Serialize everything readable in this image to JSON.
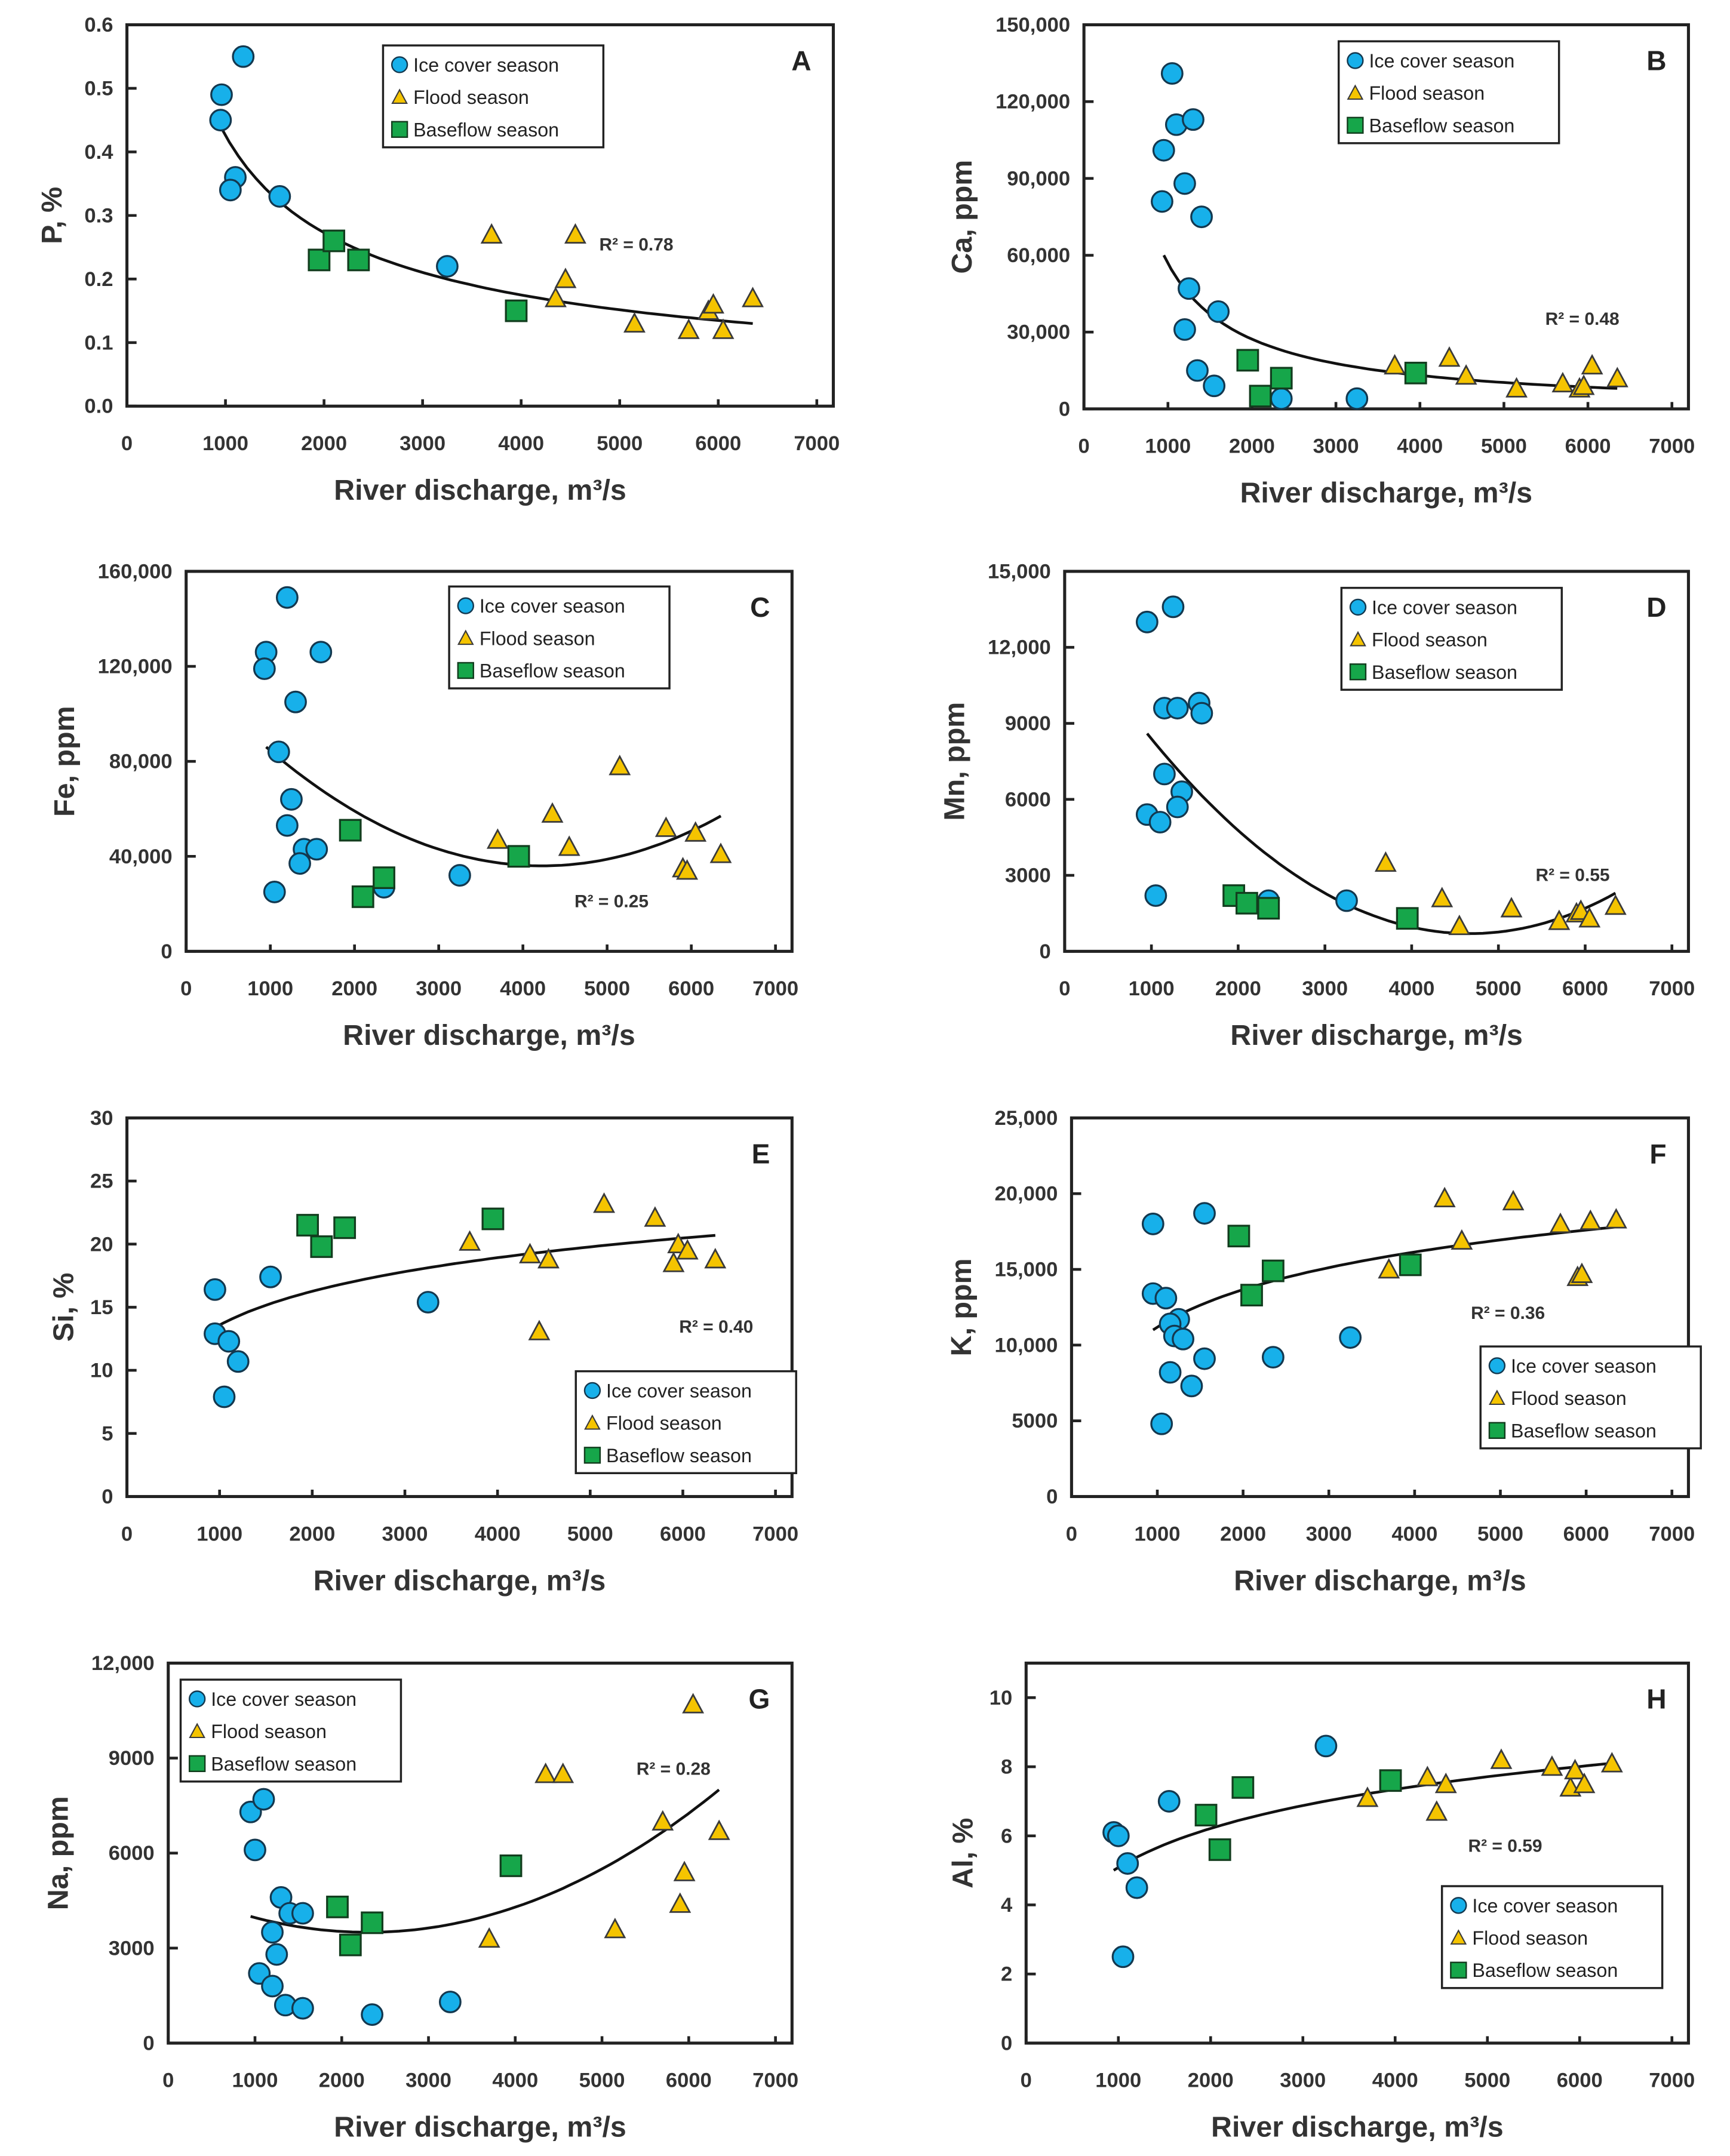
{
  "colors": {
    "ice": "#17b0ea",
    "flood": "#f5c400",
    "baseflow": "#16a64a",
    "axis": "#222222"
  },
  "series_names": [
    "Ice cover season",
    "Flood season",
    "Baseflow season"
  ],
  "chart_data": [
    {
      "panel": "A",
      "type": "scatter",
      "xlabel": "River discharge, m³/s",
      "ylabel": "P, %",
      "xlim": [
        0,
        7000
      ],
      "xticks": [
        "0",
        "1000",
        "2000",
        "3000",
        "4000",
        "5000",
        "6000",
        "7000"
      ],
      "ylim": [
        0,
        0.6
      ],
      "yticks": [
        "0.0",
        "0.1",
        "0.2",
        "0.3",
        "0.4",
        "0.5",
        "0.6"
      ],
      "r2": "R² = 0.78",
      "trend": {
        "type": "power",
        "pts": [
          [
            950,
            0.44
          ],
          [
            6350,
            0.13
          ]
        ]
      },
      "series": [
        {
          "name": "Ice cover season",
          "x": [
            950,
            960,
            1180,
            1100,
            1050,
            1550,
            3250
          ],
          "y": [
            0.45,
            0.49,
            0.55,
            0.36,
            0.34,
            0.33,
            0.22
          ]
        },
        {
          "name": "Flood season",
          "x": [
            3700,
            4550,
            4450,
            4350,
            5150,
            5700,
            5900,
            5950,
            6050,
            6350
          ],
          "y": [
            0.27,
            0.27,
            0.2,
            0.17,
            0.13,
            0.12,
            0.15,
            0.16,
            0.12,
            0.17
          ]
        },
        {
          "name": "Baseflow season",
          "x": [
            1950,
            2100,
            2350,
            3950
          ],
          "y": [
            0.23,
            0.26,
            0.23,
            0.15
          ]
        }
      ]
    },
    {
      "panel": "B",
      "type": "scatter",
      "xlabel": "River discharge, m³/s",
      "ylabel": "Ca, ppm",
      "xlim": [
        0,
        7000
      ],
      "xticks": [
        "0",
        "1000",
        "2000",
        "3000",
        "4000",
        "5000",
        "6000",
        "7000"
      ],
      "ylim": [
        0,
        150000
      ],
      "yticks": [
        "0",
        "30,000",
        "60,000",
        "90,000",
        "120,000",
        "150,000"
      ],
      "r2": "R² = 0.48",
      "trend": {
        "type": "power",
        "pts": [
          [
            950,
            60000
          ],
          [
            6350,
            8000
          ]
        ]
      },
      "series": [
        {
          "name": "Ice cover season",
          "x": [
            1050,
            1100,
            1300,
            950,
            1200,
            930,
            1400,
            1250,
            1200,
            1600,
            1350,
            1550,
            2350,
            3250
          ],
          "y": [
            131000,
            111000,
            113000,
            101000,
            88000,
            81000,
            75000,
            47000,
            31000,
            38000,
            15000,
            9000,
            4000,
            4000
          ]
        },
        {
          "name": "Flood season",
          "x": [
            3700,
            4350,
            4550,
            5150,
            5700,
            5900,
            5950,
            6050,
            6350
          ],
          "y": [
            17000,
            20000,
            13000,
            8000,
            10000,
            8000,
            9000,
            17000,
            12000
          ]
        },
        {
          "name": "Baseflow season",
          "x": [
            1950,
            2100,
            2350,
            3950
          ],
          "y": [
            19000,
            5000,
            12000,
            14000
          ]
        }
      ]
    },
    {
      "panel": "C",
      "type": "scatter",
      "xlabel": "River discharge, m³/s",
      "ylabel": "Fe, ppm",
      "xlim": [
        0,
        7000
      ],
      "xticks": [
        "0",
        "1000",
        "2000",
        "3000",
        "4000",
        "5000",
        "6000",
        "7000"
      ],
      "ylim": [
        0,
        160000
      ],
      "yticks": [
        "0",
        "40,000",
        "80,000",
        "120,000",
        "160,000"
      ],
      "r2": "R² = 0.25",
      "trend": {
        "type": "quad",
        "pts": [
          [
            950,
            86000
          ],
          [
            4200,
            36000
          ],
          [
            6350,
            57000
          ]
        ]
      },
      "series": [
        {
          "name": "Ice cover season",
          "x": [
            1200,
            950,
            930,
            1600,
            1300,
            1100,
            1250,
            1200,
            1400,
            1550,
            1350,
            1050,
            2350,
            3250
          ],
          "y": [
            149000,
            126000,
            119000,
            126000,
            105000,
            84000,
            64000,
            53000,
            43000,
            43000,
            37000,
            25000,
            27000,
            32000
          ]
        },
        {
          "name": "Flood season",
          "x": [
            3700,
            4350,
            4550,
            5150,
            5700,
            5900,
            5950,
            6050,
            6350
          ],
          "y": [
            47000,
            58000,
            44000,
            78000,
            52000,
            35000,
            34000,
            50000,
            41000
          ]
        },
        {
          "name": "Baseflow season",
          "x": [
            1950,
            2100,
            2350,
            3950
          ],
          "y": [
            51000,
            23000,
            31000,
            40000
          ]
        }
      ]
    },
    {
      "panel": "D",
      "type": "scatter",
      "xlabel": "River discharge, m³/s",
      "ylabel": "Mn, ppm",
      "xlim": [
        0,
        7000
      ],
      "xticks": [
        "0",
        "1000",
        "2000",
        "3000",
        "4000",
        "5000",
        "6000",
        "7000"
      ],
      "ylim": [
        0,
        15000
      ],
      "yticks": [
        "0",
        "3000",
        "6000",
        "9000",
        "12,000",
        "15,000"
      ],
      "r2": "R² = 0.55",
      "trend": {
        "type": "quad",
        "pts": [
          [
            950,
            8600
          ],
          [
            4700,
            700
          ],
          [
            6350,
            2300
          ]
        ]
      },
      "series": [
        {
          "name": "Ice cover season",
          "x": [
            950,
            1250,
            1150,
            1300,
            1550,
            1580,
            1150,
            1350,
            1300,
            950,
            1100,
            1050,
            2350,
            3250
          ],
          "y": [
            13000,
            13600,
            9600,
            9600,
            9800,
            9400,
            7000,
            6300,
            5700,
            5400,
            5100,
            2200,
            2000,
            2000
          ]
        },
        {
          "name": "Flood season",
          "x": [
            3700,
            4350,
            4550,
            5150,
            5700,
            5900,
            5950,
            6050,
            6350
          ],
          "y": [
            3500,
            2100,
            1000,
            1700,
            1200,
            1500,
            1600,
            1300,
            1800
          ]
        },
        {
          "name": "Baseflow season",
          "x": [
            1950,
            2100,
            2350,
            3950
          ],
          "y": [
            2200,
            1900,
            1700,
            1300
          ]
        }
      ]
    },
    {
      "panel": "E",
      "type": "scatter",
      "xlabel": "River discharge, m³/s",
      "ylabel": "Si, %",
      "xlim": [
        0,
        7000
      ],
      "xticks": [
        "0",
        "1000",
        "2000",
        "3000",
        "4000",
        "5000",
        "6000",
        "7000"
      ],
      "ylim": [
        0,
        30
      ],
      "yticks": [
        "0",
        "5",
        "10",
        "15",
        "20",
        "25",
        "30"
      ],
      "r2": "R² = 0.40",
      "trend": {
        "type": "log",
        "pts": [
          [
            950,
            13.4
          ],
          [
            6350,
            20.7
          ]
        ]
      },
      "series": [
        {
          "name": "Ice cover season",
          "x": [
            950,
            950,
            1100,
            1200,
            1050,
            1550,
            3250
          ],
          "y": [
            16.4,
            12.9,
            12.3,
            10.7,
            7.9,
            17.4,
            15.4
          ]
        },
        {
          "name": "Flood season",
          "x": [
            3700,
            4350,
            4450,
            4550,
            5150,
            5700,
            5900,
            5950,
            6050,
            6350
          ],
          "y": [
            20.2,
            19.2,
            13.1,
            18.8,
            23.2,
            22.1,
            18.5,
            20.0,
            19.5,
            18.8
          ]
        },
        {
          "name": "Baseflow season",
          "x": [
            1950,
            2100,
            2350,
            3950
          ],
          "y": [
            21.5,
            19.8,
            21.3,
            22.0
          ]
        }
      ]
    },
    {
      "panel": "F",
      "type": "scatter",
      "xlabel": "River discharge, m³/s",
      "ylabel": "K, ppm",
      "xlim": [
        0,
        7000
      ],
      "xticks": [
        "0",
        "1000",
        "2000",
        "3000",
        "4000",
        "5000",
        "6000",
        "7000"
      ],
      "ylim": [
        0,
        25000
      ],
      "yticks": [
        "0",
        "5000",
        "10,000",
        "15,000",
        "20,000",
        "25,000"
      ],
      "r2": "R² = 0.36",
      "trend": {
        "type": "log",
        "pts": [
          [
            950,
            11000
          ],
          [
            6350,
            17800
          ]
        ]
      },
      "series": [
        {
          "name": "Ice cover season",
          "x": [
            950,
            1550,
            950,
            1100,
            1250,
            1150,
            1200,
            1300,
            1150,
            1400,
            1550,
            1050,
            2350,
            3250
          ],
          "y": [
            18000,
            18700,
            13400,
            13100,
            11700,
            11400,
            10600,
            10400,
            8200,
            7300,
            9100,
            4800,
            9200,
            10500
          ]
        },
        {
          "name": "Flood season",
          "x": [
            3700,
            4350,
            4550,
            5150,
            5700,
            5900,
            5950,
            6050,
            6350
          ],
          "y": [
            15000,
            19700,
            16900,
            19500,
            18000,
            14500,
            14700,
            18200,
            18300
          ]
        },
        {
          "name": "Baseflow season",
          "x": [
            1950,
            2100,
            2350,
            3950
          ],
          "y": [
            17200,
            13300,
            14900,
            15300
          ]
        }
      ]
    },
    {
      "panel": "G",
      "type": "scatter",
      "xlabel": "River discharge, m³/s",
      "ylabel": "Na, ppm",
      "xlim": [
        0,
        7000
      ],
      "xticks": [
        "0",
        "1000",
        "2000",
        "3000",
        "4000",
        "5000",
        "6000",
        "7000"
      ],
      "ylim": [
        0,
        12000
      ],
      "yticks": [
        "0",
        "3000",
        "6000",
        "9000",
        "12,000"
      ],
      "r2": "R² = 0.28",
      "trend": {
        "type": "quad",
        "pts": [
          [
            950,
            4000
          ],
          [
            2300,
            3500
          ],
          [
            6350,
            8000
          ]
        ]
      },
      "series": [
        {
          "name": "Ice cover season",
          "x": [
            950,
            1100,
            1000,
            1300,
            1400,
            1550,
            1200,
            1250,
            1050,
            1200,
            1350,
            1550,
            2350,
            3250
          ],
          "y": [
            7300,
            7700,
            6100,
            4600,
            4100,
            4100,
            3500,
            2800,
            2200,
            1800,
            1200,
            1100,
            900,
            1300
          ]
        },
        {
          "name": "Flood season",
          "x": [
            3700,
            4350,
            4550,
            5150,
            5700,
            5900,
            5950,
            6050,
            6350
          ],
          "y": [
            3300,
            8500,
            8500,
            3600,
            7000,
            4400,
            5400,
            10700,
            6700
          ]
        },
        {
          "name": "Baseflow season",
          "x": [
            1950,
            2100,
            2350,
            3950
          ],
          "y": [
            4300,
            3100,
            3800,
            5600
          ]
        }
      ]
    },
    {
      "panel": "H",
      "type": "scatter",
      "xlabel": "River discharge, m³/s",
      "ylabel": "Al, %",
      "xlim": [
        0,
        7000
      ],
      "xticks": [
        "0",
        "1000",
        "2000",
        "3000",
        "4000",
        "5000",
        "6000",
        "7000"
      ],
      "ylim": [
        0,
        11
      ],
      "yticks": [
        "0",
        "2",
        "4",
        "6",
        "8",
        "10"
      ],
      "ytick_step": 2,
      "r2": "R² = 0.59",
      "trend": {
        "type": "log",
        "pts": [
          [
            950,
            5.0
          ],
          [
            6350,
            8.1
          ]
        ]
      },
      "series": [
        {
          "name": "Ice cover season",
          "x": [
            950,
            1000,
            1100,
            1200,
            1050,
            1550,
            3250
          ],
          "y": [
            6.1,
            6.0,
            5.2,
            4.5,
            2.5,
            7.0,
            8.6
          ]
        },
        {
          "name": "Flood season",
          "x": [
            3700,
            4350,
            4450,
            4550,
            5150,
            5700,
            5900,
            5950,
            6050,
            6350
          ],
          "y": [
            7.1,
            7.7,
            6.7,
            7.5,
            8.2,
            8.0,
            7.4,
            7.9,
            7.5,
            8.1
          ]
        },
        {
          "name": "Baseflow season",
          "x": [
            1950,
            2100,
            2350,
            3950
          ],
          "y": [
            6.6,
            5.6,
            7.4,
            7.6
          ]
        }
      ]
    }
  ]
}
